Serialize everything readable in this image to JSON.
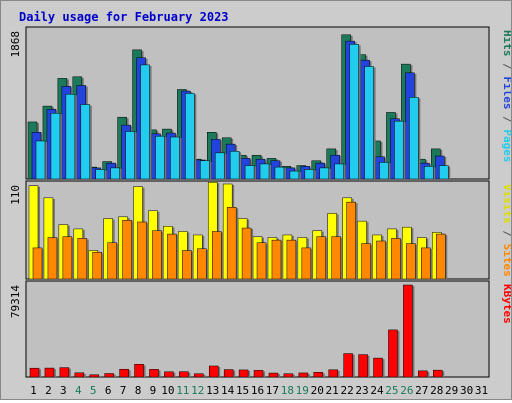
{
  "chart_data": [
    {
      "type": "bar",
      "title": "Daily usage for February 2023",
      "categories": [
        "1",
        "2",
        "3",
        "4",
        "5",
        "6",
        "7",
        "8",
        "9",
        "10",
        "11",
        "12",
        "13",
        "14",
        "15",
        "16",
        "17",
        "18",
        "19",
        "20",
        "21",
        "22",
        "23",
        "24",
        "25",
        "26",
        "27",
        "28",
        "29",
        "30",
        "31"
      ],
      "weekend_categories": [
        "4",
        "5",
        "11",
        "12",
        "18",
        "19",
        "25",
        "26"
      ],
      "y_max_label": "1868",
      "ylabel_parts": [
        {
          "text": "Hits",
          "color": "#1a7a5a"
        },
        {
          "text": " / ",
          "color": "#555555"
        },
        {
          "text": "Files",
          "color": "#2244dd"
        },
        {
          "text": " / ",
          "color": "#555555"
        },
        {
          "text": "Pages",
          "color": "#22ccee"
        }
      ],
      "series": [
        {
          "name": "Hits",
          "color": "#1a7a5a",
          "values": [
            720,
            920,
            1270,
            1290,
            150,
            220,
            780,
            1630,
            620,
            630,
            1130,
            250,
            590,
            520,
            300,
            300,
            260,
            160,
            170,
            230,
            380,
            1820,
            1570,
            480,
            840,
            1450,
            250,
            380,
            0,
            0,
            0
          ]
        },
        {
          "name": "Files",
          "color": "#2244dd",
          "values": [
            590,
            880,
            1170,
            1180,
            140,
            200,
            680,
            1530,
            570,
            580,
            1110,
            240,
            500,
            440,
            260,
            250,
            230,
            140,
            160,
            200,
            300,
            1740,
            1500,
            280,
            760,
            1340,
            200,
            290,
            0,
            0,
            0
          ]
        },
        {
          "name": "Pages",
          "color": "#22ccee",
          "values": [
            480,
            830,
            1070,
            940,
            120,
            140,
            600,
            1440,
            540,
            530,
            1080,
            230,
            330,
            350,
            170,
            190,
            150,
            100,
            120,
            140,
            190,
            1700,
            1420,
            210,
            730,
            1030,
            160,
            170,
            0,
            0,
            0
          ]
        }
      ]
    },
    {
      "type": "bar",
      "y_max_label": "110",
      "ylabel_parts": [
        {
          "text": "Visits",
          "color": "#dddd00"
        },
        {
          "text": " / ",
          "color": "#555555"
        },
        {
          "text": "Sites",
          "color": "#ff8800"
        }
      ],
      "series": [
        {
          "name": "Visits",
          "color": "#ffff00",
          "values": [
            108,
            94,
            63,
            58,
            33,
            70,
            72,
            107,
            79,
            61,
            55,
            51,
            112,
            110,
            70,
            49,
            48,
            51,
            48,
            56,
            76,
            94,
            67,
            51,
            58,
            60,
            48,
            54,
            0,
            0,
            0
          ]
        },
        {
          "name": "Sites",
          "color": "#ff8800",
          "values": [
            36,
            48,
            49,
            47,
            31,
            42,
            68,
            66,
            56,
            52,
            33,
            35,
            55,
            83,
            59,
            42,
            45,
            45,
            36,
            49,
            49,
            89,
            41,
            44,
            47,
            41,
            36,
            52,
            0,
            0,
            0
          ]
        }
      ]
    },
    {
      "type": "bar",
      "y_max_label": "79314",
      "ylabel_parts": [
        {
          "text": "KBytes",
          "color": "#ff0000"
        }
      ],
      "series": [
        {
          "name": "KBytes",
          "color": "#ff0000",
          "values": [
            7600,
            7700,
            8100,
            3600,
            1900,
            3000,
            6700,
            11000,
            6600,
            4500,
            4600,
            2800,
            9500,
            6400,
            6100,
            5700,
            3400,
            2800,
            3500,
            4100,
            6200,
            20200,
            19300,
            16300,
            40600,
            79314,
            5300,
            5900,
            0,
            0,
            0
          ]
        }
      ]
    }
  ]
}
